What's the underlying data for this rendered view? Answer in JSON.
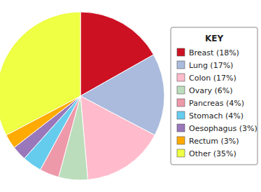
{
  "chart_data": {
    "type": "pie",
    "categories": [
      "Breast (18%)",
      "Lung (17%)",
      "Colon (17%)",
      "Ovary (6%)",
      "Pancreas (4%)",
      "Stomach (4%)",
      "Oesophagus (3%)",
      "Rectum (3%)",
      "Other (35%)"
    ],
    "values": [
      18,
      17,
      17,
      6,
      4,
      4,
      3,
      3,
      35
    ],
    "colors": [
      "#cc1122",
      "#aabbdd",
      "#ffbbcc",
      "#bbddbb",
      "#ee99aa",
      "#66ccee",
      "#9977bb",
      "#ffaa00",
      "#eeff44"
    ],
    "legend": "right",
    "legend_title": "KEY"
  }
}
